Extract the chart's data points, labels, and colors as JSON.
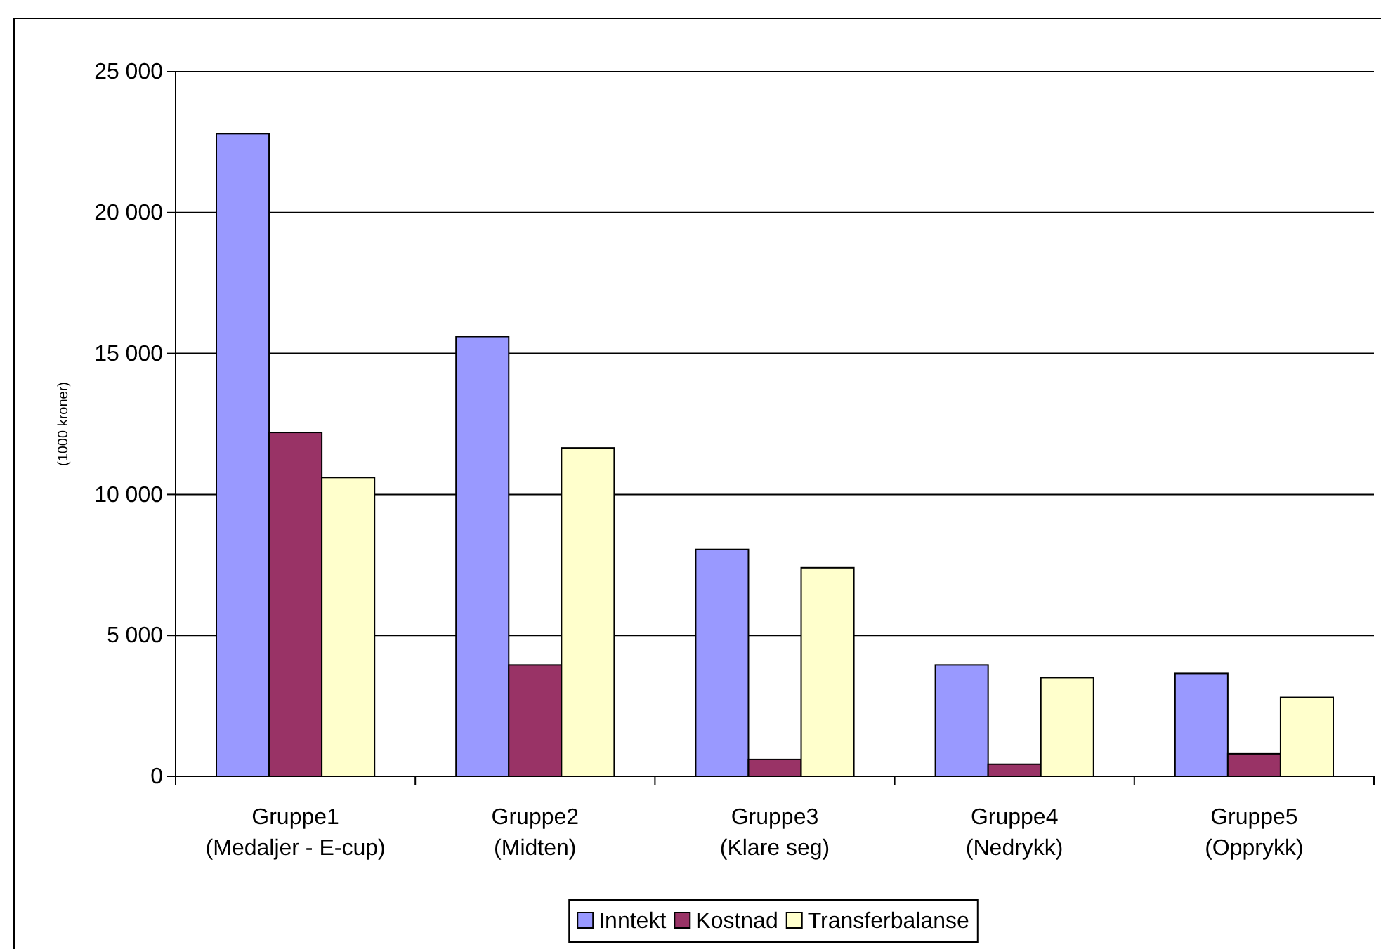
{
  "chart_data": {
    "type": "bar",
    "ylabel": "(1000 kroner)",
    "categories": [
      "Gruppe1\n(Medaljer - E-cup)",
      "Gruppe2\n(Midten)",
      "Gruppe3\n(Klare seg)",
      "Gruppe4\n(Nedrykk)",
      "Gruppe5\n(Opprykk)"
    ],
    "series": [
      {
        "name": "Inntekt",
        "color": "#9999ff",
        "values": [
          22800,
          15600,
          8050,
          3950,
          3650
        ]
      },
      {
        "name": "Kostnad",
        "color": "#993366",
        "values": [
          12200,
          3950,
          600,
          430,
          800
        ]
      },
      {
        "name": "Transferbalanse",
        "color": "#ffffcc",
        "values": [
          10600,
          11650,
          7400,
          3500,
          2800
        ]
      }
    ],
    "ylim": [
      0,
      25000
    ],
    "yticks": [
      {
        "value": 0,
        "label": "0"
      },
      {
        "value": 5000,
        "label": "5 000"
      },
      {
        "value": 10000,
        "label": "10 000"
      },
      {
        "value": 15000,
        "label": "15 000"
      },
      {
        "value": 20000,
        "label": "20 000"
      },
      {
        "value": 25000,
        "label": "25 000"
      }
    ],
    "grid": "y",
    "legend": "bottom"
  }
}
